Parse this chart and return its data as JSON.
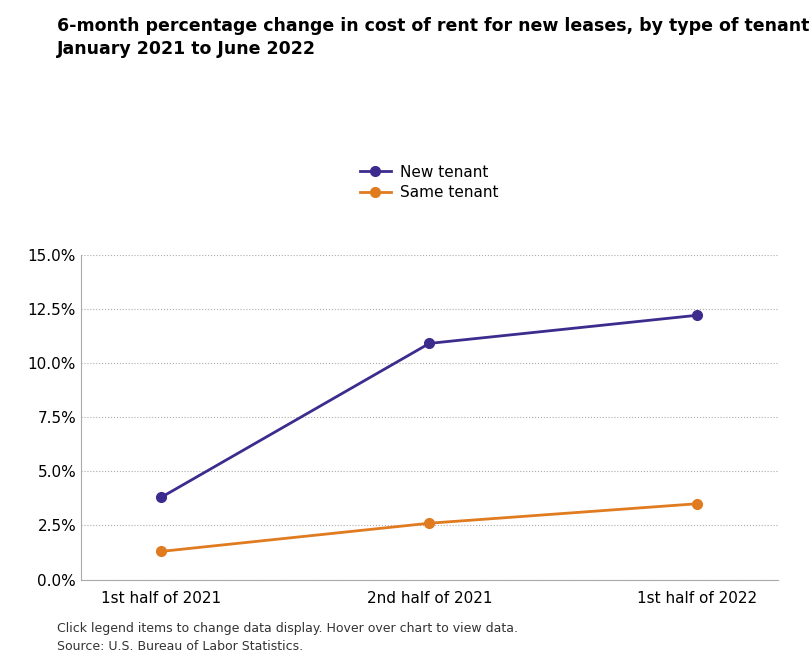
{
  "title_line1": "6-month percentage change in cost of rent for new leases, by type of tenant,",
  "title_line2": "January 2021 to June 2022",
  "x_labels": [
    "1st half of 2021",
    "2nd half of 2021",
    "1st half of 2022"
  ],
  "new_tenant": [
    0.038,
    0.109,
    0.122
  ],
  "same_tenant": [
    0.013,
    0.026,
    0.035
  ],
  "new_tenant_color": "#3d2b8e",
  "same_tenant_color": "#e07b20",
  "new_tenant_label": "New tenant",
  "same_tenant_label": "Same tenant",
  "ylim": [
    0.0,
    0.15
  ],
  "yticks": [
    0.0,
    0.025,
    0.05,
    0.075,
    0.1,
    0.125,
    0.15
  ],
  "ytick_labels": [
    "0.0%",
    "2.5%",
    "5.0%",
    "7.5%",
    "10.0%",
    "12.5%",
    "15.0%"
  ],
  "background_color": "#ffffff",
  "footer_line1": "Click legend items to change data display. Hover over chart to view data.",
  "footer_line2": "Source: U.S. Bureau of Labor Statistics.",
  "title_fontsize": 12.5,
  "axis_fontsize": 11,
  "legend_fontsize": 11,
  "footer_fontsize": 9,
  "marker_size": 7,
  "line_width": 2
}
